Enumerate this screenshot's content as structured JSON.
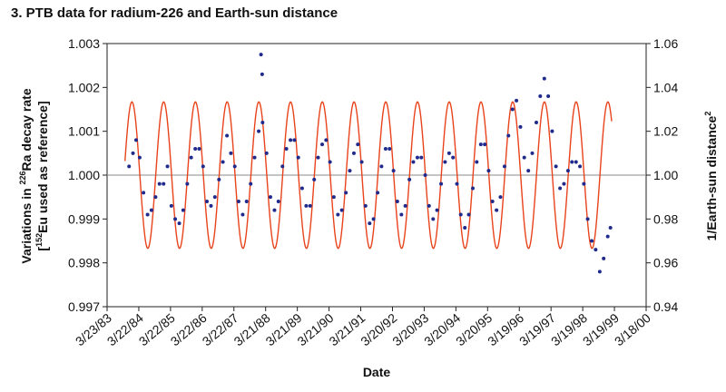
{
  "title": "3. PTB data for radium-226 and Earth-sun distance",
  "chart_data": {
    "type": "scatter",
    "title": "3. PTB data for radium-226 and Earth-sun distance",
    "xlabel": "Date",
    "ylabel_left": {
      "line1_pre": "Variations in ",
      "line1_sup": "226",
      "line1_post": "Ra decay rate",
      "line2_pre": "[",
      "line2_sup": "152",
      "line2_post": "Eu used as reference]"
    },
    "ylabel_right": {
      "text": "1/Earth-sun distance",
      "sup": "2"
    },
    "x_ticks": [
      "3/23/83",
      "3/22/84",
      "3/22/85",
      "3/22/86",
      "3/22/87",
      "3/21/88",
      "3/21/89",
      "3/21/90",
      "3/21/91",
      "3/20/92",
      "3/20/93",
      "3/20/94",
      "3/20/95",
      "3/19/96",
      "3/19/97",
      "3/19/98",
      "3/19/99",
      "3/18/00"
    ],
    "xlim": [
      "1983-03-23",
      "2000-03-18"
    ],
    "y_left": {
      "ticks": [
        "0.997",
        "0.998",
        "0.999",
        "1.000",
        "1.001",
        "1.002",
        "1.003"
      ],
      "lim": [
        0.997,
        1.003
      ]
    },
    "y_right": {
      "ticks": [
        "0.94",
        "0.96",
        "0.98",
        "1.00",
        "1.02",
        "1.04",
        "1.06"
      ],
      "lim": [
        0.94,
        1.06
      ]
    },
    "reference_line": 1.0,
    "grid": false,
    "series": [
      {
        "role": "decay_rate_points",
        "color": "#1f2a8c",
        "axis": "left",
        "x": [
          "1983-12-01",
          "1984-01-15",
          "1984-02-20",
          "1984-04-01",
          "1984-05-15",
          "1984-07-01",
          "1984-08-15",
          "1984-10-01",
          "1984-11-15",
          "1985-01-01",
          "1985-02-15",
          "1985-04-01",
          "1985-05-15",
          "1985-07-01",
          "1985-08-15",
          "1985-10-01",
          "1985-11-15",
          "1986-01-01",
          "1986-02-15",
          "1986-04-01",
          "1986-05-15",
          "1986-07-01",
          "1986-08-15",
          "1986-10-01",
          "1986-11-15",
          "1987-01-01",
          "1987-02-15",
          "1987-04-01",
          "1987-05-15",
          "1987-07-01",
          "1987-08-15",
          "1987-10-01",
          "1987-11-15",
          "1988-01-01",
          "1988-02-15",
          "1988-04-01",
          "1988-05-15",
          "1988-07-01",
          "1988-08-15",
          "1988-10-01",
          "1988-11-15",
          "1989-01-01",
          "1989-02-15",
          "1989-04-01",
          "1989-05-15",
          "1989-07-01",
          "1989-08-15",
          "1989-10-01",
          "1989-11-15",
          "1990-01-01",
          "1990-02-15",
          "1990-04-01",
          "1990-05-15",
          "1990-07-01",
          "1990-08-15",
          "1990-10-01",
          "1990-11-15",
          "1991-01-01",
          "1991-02-15",
          "1991-04-01",
          "1991-05-15",
          "1991-07-01",
          "1991-08-15",
          "1991-10-01",
          "1991-11-15",
          "1992-01-01",
          "1992-02-15",
          "1992-04-01",
          "1992-05-15",
          "1992-07-01",
          "1992-08-15",
          "1992-10-01",
          "1992-11-15",
          "1993-01-01",
          "1993-02-15",
          "1993-04-01",
          "1993-05-15",
          "1993-07-01",
          "1993-08-15",
          "1993-10-01",
          "1993-11-15",
          "1994-01-01",
          "1994-02-15",
          "1994-04-01",
          "1994-05-15",
          "1994-07-01",
          "1994-08-15",
          "1994-10-01",
          "1994-11-15",
          "1995-01-01",
          "1995-02-15",
          "1995-04-01",
          "1995-05-15",
          "1995-07-01",
          "1995-08-15",
          "1995-10-01",
          "1995-11-15",
          "1996-01-01",
          "1996-02-15",
          "1996-04-01",
          "1996-05-15",
          "1996-07-01",
          "1996-08-15",
          "1996-10-01",
          "1996-11-15",
          "1997-01-01",
          "1997-02-15",
          "1997-04-01",
          "1997-05-15",
          "1997-07-01",
          "1997-08-15",
          "1997-10-01",
          "1997-11-15",
          "1998-01-01",
          "1998-02-15",
          "1998-04-01",
          "1998-05-15",
          "1998-07-01",
          "1998-08-15",
          "1998-10-01",
          "1998-11-15",
          "1999-01-01",
          "1999-02-01"
        ],
        "y": [
          1.0002,
          1.0005,
          1.0008,
          1.0004,
          0.9996,
          0.9991,
          0.9992,
          0.9995,
          0.9998,
          0.9998,
          1.0002,
          0.9993,
          0.999,
          0.9989,
          0.9992,
          0.9998,
          1.0004,
          1.0006,
          1.0006,
          1.0002,
          0.9994,
          0.9993,
          0.9995,
          0.9999,
          1.0003,
          1.0009,
          1.0005,
          1.0002,
          0.9994,
          0.9991,
          0.9994,
          0.9998,
          1.0004,
          1.001,
          1.0012,
          1.0005,
          0.9995,
          0.9992,
          0.9994,
          1.0002,
          1.0006,
          1.0008,
          1.0008,
          1.0004,
          0.9997,
          0.9993,
          0.9993,
          0.9999,
          1.0004,
          1.0007,
          1.0008,
          1.0003,
          0.9995,
          0.9991,
          0.9992,
          0.9996,
          1.0001,
          1.0005,
          1.0007,
          1.0003,
          0.9993,
          0.9989,
          0.999,
          0.9996,
          1.0002,
          1.0006,
          1.0006,
          1.0001,
          0.9994,
          0.9991,
          0.9993,
          0.9999,
          1.0003,
          1.0004,
          1.0004,
          1.0,
          0.9993,
          0.999,
          0.9992,
          0.9998,
          1.0003,
          1.0005,
          1.0004,
          0.9998,
          0.9991,
          0.9988,
          0.9991,
          0.9997,
          1.0003,
          1.0007,
          1.0007,
          1.0001,
          0.9994,
          0.9992,
          0.9995,
          1.0002,
          1.0009,
          1.0015,
          1.0017,
          1.0011,
          1.0004,
          1.0001,
          1.0005,
          1.0012,
          1.0018,
          1.0022,
          1.0018,
          1.001,
          1.0002,
          0.9997,
          0.9998,
          1.0001,
          1.0003,
          1.0003,
          1.0002,
          0.9998,
          0.999,
          0.9985,
          0.9983,
          0.9978,
          0.9981,
          0.9986,
          0.9988
        ]
      },
      {
        "role": "earth_sun_curve",
        "color": "#e8431b",
        "axis": "right",
        "function": "1 + 0.0334 * cos(2*pi*(t - perihelion)/year)",
        "x_range": [
          "1983-10-15",
          "1999-02-15"
        ],
        "amplitude": 0.0334
      }
    ],
    "outliers": [
      {
        "x": "1988-01-28",
        "y": 1.00275
      },
      {
        "x": "1988-02-10",
        "y": 1.0023
      }
    ]
  }
}
